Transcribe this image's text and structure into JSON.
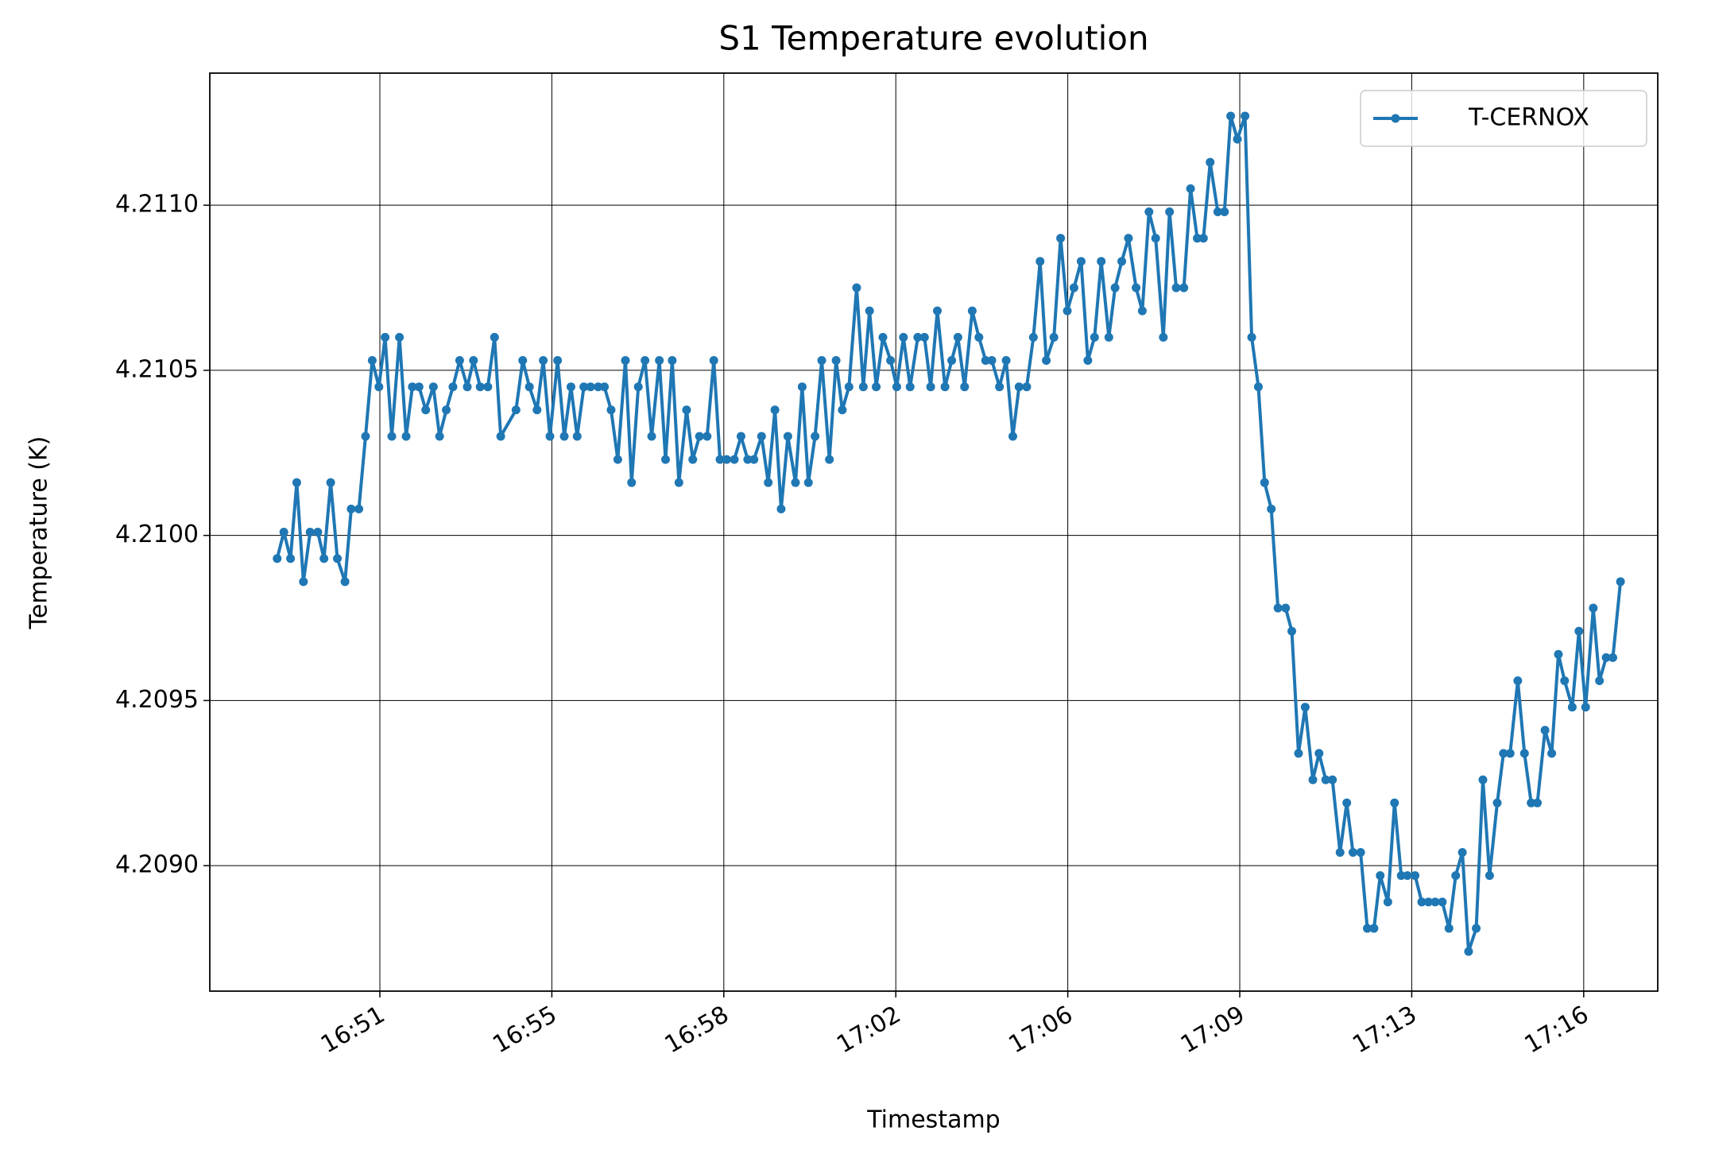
{
  "chart_data": {
    "type": "line",
    "title": "S1 Temperature evolution",
    "xlabel": "Timestamp",
    "ylabel": "Temperature (K)",
    "x": [
      1009.55,
      1009.69,
      1009.83,
      1009.96,
      1010.1,
      1010.24,
      1010.4,
      1010.53,
      1010.67,
      1010.81,
      1010.97,
      1011.1,
      1011.26,
      1011.4,
      1011.54,
      1011.68,
      1011.81,
      1011.95,
      1012.11,
      1012.25,
      1012.38,
      1012.52,
      1012.66,
      1012.82,
      1012.95,
      1013.09,
      1013.23,
      1013.37,
      1013.53,
      1013.66,
      1013.8,
      1013.96,
      1014.1,
      1014.23,
      1014.55,
      1014.69,
      1014.83,
      1014.99,
      1015.12,
      1015.26,
      1015.42,
      1015.56,
      1015.7,
      1015.83,
      1015.97,
      1016.11,
      1016.27,
      1016.4,
      1016.54,
      1016.68,
      1016.84,
      1016.97,
      1017.11,
      1017.25,
      1017.39,
      1017.55,
      1017.68,
      1017.82,
      1017.96,
      1018.12,
      1018.25,
      1018.39,
      1018.55,
      1018.69,
      1018.82,
      1018.96,
      1019.12,
      1019.26,
      1019.4,
      1019.53,
      1019.69,
      1019.83,
      1019.97,
      1020.1,
      1020.24,
      1020.4,
      1020.54,
      1020.67,
      1020.81,
      1020.95,
      1021.11,
      1021.25,
      1021.38,
      1021.52,
      1021.68,
      1021.82,
      1021.95,
      1022.09,
      1022.23,
      1022.39,
      1022.52,
      1022.66,
      1022.8,
      1022.96,
      1023.1,
      1023.23,
      1023.37,
      1023.53,
      1023.67,
      1023.8,
      1023.94,
      1024.1,
      1024.24,
      1024.38,
      1024.51,
      1024.67,
      1024.81,
      1024.95,
      1025.08,
      1025.24,
      1025.38,
      1025.52,
      1025.65,
      1025.81,
      1025.95,
      1026.09,
      1026.23,
      1026.38,
      1026.52,
      1026.66,
      1026.8,
      1026.96,
      1027.09,
      1027.23,
      1027.37,
      1027.53,
      1027.66,
      1027.8,
      1027.94,
      1028.1,
      1028.23,
      1028.37,
      1028.53,
      1028.67,
      1028.81,
      1028.94,
      1029.08,
      1029.24,
      1029.38,
      1029.51,
      1029.65,
      1029.81,
      1029.95,
      1030.09,
      1030.22,
      1030.36,
      1030.5,
      1030.66,
      1030.79,
      1030.93,
      1031.07,
      1031.23,
      1031.36,
      1031.5,
      1031.64,
      1031.8,
      1031.94,
      1032.07,
      1032.23,
      1032.37,
      1032.51,
      1032.64,
      1032.8,
      1032.94,
      1033.08,
      1033.21,
      1033.37,
      1033.51,
      1033.65,
      1033.79,
      1033.94,
      1034.08,
      1034.22,
      1034.36,
      1034.49,
      1034.65,
      1034.79,
      1034.93,
      1035.09,
      1035.22,
      1035.36,
      1035.52,
      1035.66,
      1035.8,
      1035.93,
      1036.09,
      1036.23,
      1036.37,
      1036.5,
      1036.66,
      1036.8,
      1036.94,
      1037.1,
      1037.23,
      1037.37,
      1037.51,
      1037.67
    ],
    "series": [
      {
        "name": "T-CERNOX",
        "color": "#1f77b4",
        "values": [
          4.20993,
          4.21001,
          4.20993,
          4.21016,
          4.20986,
          4.21001,
          4.21001,
          4.20993,
          4.21016,
          4.20993,
          4.20986,
          4.21008,
          4.21008,
          4.2103,
          4.21053,
          4.21045,
          4.2106,
          4.2103,
          4.2106,
          4.2103,
          4.21045,
          4.21045,
          4.21038,
          4.21045,
          4.2103,
          4.21038,
          4.21045,
          4.21053,
          4.21045,
          4.21053,
          4.21045,
          4.21045,
          4.2106,
          4.2103,
          4.21038,
          4.21053,
          4.21045,
          4.21038,
          4.21053,
          4.2103,
          4.21053,
          4.2103,
          4.21045,
          4.2103,
          4.21045,
          4.21045,
          4.21045,
          4.21045,
          4.21038,
          4.21023,
          4.21053,
          4.21016,
          4.21045,
          4.21053,
          4.2103,
          4.21053,
          4.21023,
          4.21053,
          4.21016,
          4.21038,
          4.21023,
          4.2103,
          4.2103,
          4.21053,
          4.21023,
          4.21023,
          4.21023,
          4.2103,
          4.21023,
          4.21023,
          4.2103,
          4.21016,
          4.21038,
          4.21008,
          4.2103,
          4.21016,
          4.21045,
          4.21016,
          4.2103,
          4.21053,
          4.21023,
          4.21053,
          4.21038,
          4.21045,
          4.21075,
          4.21045,
          4.21068,
          4.21045,
          4.2106,
          4.21053,
          4.21045,
          4.2106,
          4.21045,
          4.2106,
          4.2106,
          4.21045,
          4.21068,
          4.21045,
          4.21053,
          4.2106,
          4.21045,
          4.21068,
          4.2106,
          4.21053,
          4.21053,
          4.21045,
          4.21053,
          4.2103,
          4.21045,
          4.21045,
          4.2106,
          4.21083,
          4.21053,
          4.2106,
          4.2109,
          4.21068,
          4.21075,
          4.21083,
          4.21053,
          4.2106,
          4.21083,
          4.2106,
          4.21075,
          4.21083,
          4.2109,
          4.21075,
          4.21068,
          4.21098,
          4.2109,
          4.2106,
          4.21098,
          4.21075,
          4.21075,
          4.21105,
          4.2109,
          4.2109,
          4.21113,
          4.21098,
          4.21098,
          4.21127,
          4.2112,
          4.21127,
          4.2106,
          4.21045,
          4.21016,
          4.21008,
          4.20978,
          4.20978,
          4.20971,
          4.20934,
          4.20948,
          4.20926,
          4.20934,
          4.20926,
          4.20926,
          4.20904,
          4.20919,
          4.20904,
          4.20904,
          4.20881,
          4.20881,
          4.20897,
          4.20889,
          4.20919,
          4.20897,
          4.20897,
          4.20897,
          4.20889,
          4.20889,
          4.20889,
          4.20889,
          4.20881,
          4.20897,
          4.20904,
          4.20874,
          4.20881,
          4.20926,
          4.20897,
          4.20919,
          4.20934,
          4.20934,
          4.20956,
          4.20934,
          4.20919,
          4.20919,
          4.20941,
          4.20934,
          4.20964,
          4.20956,
          4.20948,
          4.20971,
          4.20948,
          4.20978,
          4.20956,
          4.20963,
          4.20963,
          4.20986
        ]
      }
    ],
    "xlim": [
      1008.14,
      1038.45
    ],
    "xticks": [
      {
        "value": 1011.7,
        "label": "16:51"
      },
      {
        "value": 1015.3,
        "label": "16:55"
      },
      {
        "value": 1018.9,
        "label": "16:58"
      },
      {
        "value": 1022.5,
        "label": "17:02"
      },
      {
        "value": 1026.1,
        "label": "17:06"
      },
      {
        "value": 1029.7,
        "label": "17:09"
      },
      {
        "value": 1033.3,
        "label": "17:13"
      },
      {
        "value": 1036.9,
        "label": "17:16"
      }
    ],
    "ylim": [
      4.20862,
      4.2114
    ],
    "yticks": [
      {
        "value": 4.209,
        "label": "4.2090"
      },
      4.2095,
      {
        "value": 4.21,
        "label": "4.2100"
      },
      4.2105,
      {
        "value": 4.211,
        "label": "4.2110"
      }
    ],
    "grid": true,
    "legend": "upper right",
    "markers": true
  }
}
